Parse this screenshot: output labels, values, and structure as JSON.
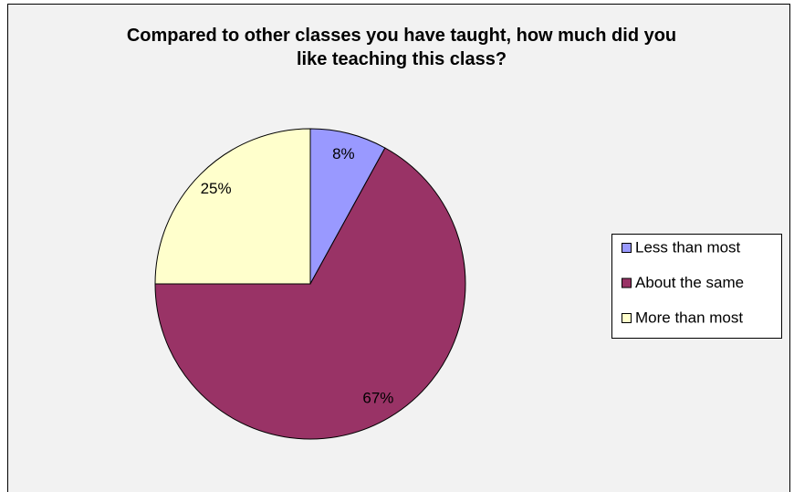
{
  "chart_data": {
    "type": "pie",
    "title": "Compared to other classes you have taught, how much did you like teaching this class?",
    "categories": [
      "Less than most",
      "About the same",
      "More than most"
    ],
    "values": [
      8,
      67,
      25
    ],
    "value_labels": [
      "8%",
      "67%",
      "25%"
    ],
    "colors": [
      "#9999ff",
      "#993366",
      "#ffffcc"
    ],
    "legend": "right"
  }
}
